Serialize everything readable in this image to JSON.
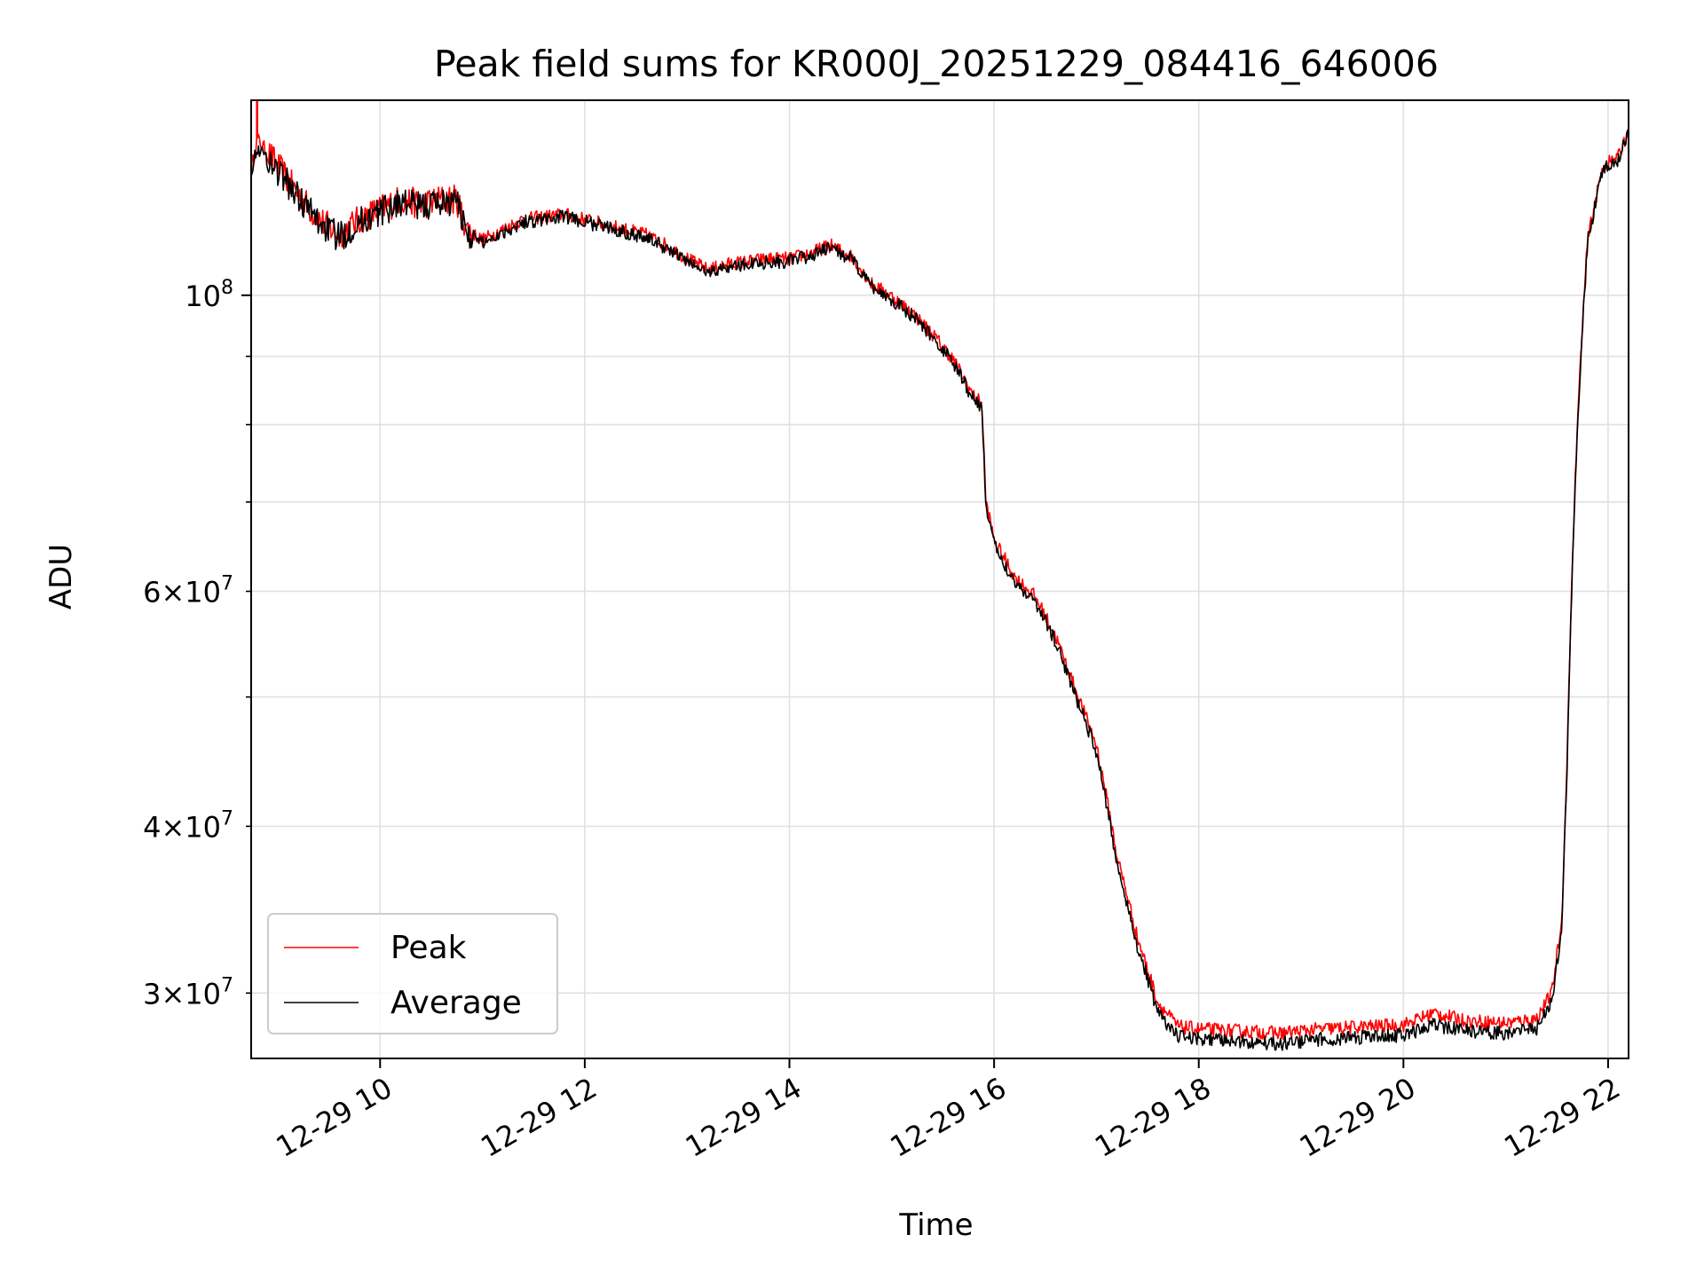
{
  "chart_data": {
    "type": "line",
    "title": "Peak field sums for KR000J_20251229_084416_646006",
    "xlabel": "Time",
    "ylabel": "ADU",
    "y_scale": "log",
    "x_unit": "hours on 2025-12-29",
    "xlim": [
      8.74,
      22.2
    ],
    "ylim": [
      26800000,
      140000000
    ],
    "grid": true,
    "legend_location": "lower-left",
    "colors": {
      "Peak": "#ff0000",
      "Average": "#000000",
      "grid": "#e0e0e0"
    },
    "x_ticks": [
      {
        "value": 10,
        "label": "12-29 10"
      },
      {
        "value": 12,
        "label": "12-29 12"
      },
      {
        "value": 14,
        "label": "12-29 14"
      },
      {
        "value": 16,
        "label": "12-29 16"
      },
      {
        "value": 18,
        "label": "12-29 18"
      },
      {
        "value": 20,
        "label": "12-29 20"
      },
      {
        "value": 22,
        "label": "12-29 22"
      }
    ],
    "y_major_ticks": [
      {
        "value": 100000000,
        "base": "10",
        "exp": "8"
      }
    ],
    "y_minor_ticks": [
      {
        "value": 30000000,
        "mant": "3",
        "base": "10",
        "exp": "7"
      },
      {
        "value": 40000000,
        "mant": "4",
        "base": "10",
        "exp": "7"
      },
      {
        "value": 50000000
      },
      {
        "value": 60000000,
        "mant": "6",
        "base": "10",
        "exp": "7"
      },
      {
        "value": 70000000
      },
      {
        "value": 80000000
      },
      {
        "value": 90000000
      }
    ],
    "series": [
      {
        "name": "Peak",
        "noise": 0.012,
        "spike": {
          "x": 8.8,
          "y": 140000000
        },
        "x": [
          8.74,
          8.8,
          9.0,
          9.2,
          9.4,
          9.6,
          9.8,
          10.0,
          10.2,
          10.4,
          10.6,
          10.75,
          10.85,
          11.0,
          11.2,
          11.4,
          11.6,
          11.8,
          12.0,
          12.2,
          12.4,
          12.6,
          12.8,
          13.0,
          13.2,
          13.4,
          13.6,
          13.8,
          14.0,
          14.2,
          14.4,
          14.6,
          14.8,
          15.0,
          15.2,
          15.4,
          15.6,
          15.8,
          15.88,
          15.92,
          16.0,
          16.2,
          16.4,
          16.6,
          16.8,
          17.0,
          17.2,
          17.4,
          17.6,
          17.8,
          18.0,
          18.4,
          18.8,
          19.2,
          19.6,
          20.0,
          20.3,
          20.6,
          21.0,
          21.3,
          21.45,
          21.55,
          21.6,
          21.7,
          21.8,
          21.95,
          22.1,
          22.2
        ],
        "y": [
          124000000,
          131000000,
          125000000,
          119000000,
          114000000,
          111000000,
          114000000,
          116000000,
          118000000,
          117000000,
          118000000,
          118000000,
          112000000,
          110000000,
          112000000,
          114000000,
          114500000,
          115000000,
          114000000,
          113000000,
          112000000,
          111000000,
          109000000,
          106500000,
          104500000,
          105500000,
          106000000,
          106500000,
          106500000,
          107500000,
          109000000,
          107000000,
          102000000,
          99800000,
          97000000,
          93500000,
          89500000,
          84000000,
          83000000,
          70000000,
          65500000,
          61500000,
          59500000,
          55500000,
          50500000,
          46000000,
          38000000,
          33000000,
          29500000,
          28300000,
          28200000,
          28100000,
          28000000,
          28200000,
          28300000,
          28400000,
          29000000,
          28600000,
          28500000,
          28700000,
          30000000,
          34000000,
          45000000,
          80000000,
          110000000,
          125000000,
          127000000,
          133000000
        ]
      },
      {
        "name": "Average",
        "noise": 0.012,
        "x": [
          8.74,
          8.8,
          9.0,
          9.2,
          9.4,
          9.6,
          9.8,
          10.0,
          10.2,
          10.4,
          10.6,
          10.75,
          10.85,
          11.0,
          11.2,
          11.4,
          11.6,
          11.8,
          12.0,
          12.2,
          12.4,
          12.6,
          12.8,
          13.0,
          13.2,
          13.4,
          13.6,
          13.8,
          14.0,
          14.2,
          14.4,
          14.6,
          14.8,
          15.0,
          15.2,
          15.4,
          15.6,
          15.8,
          15.88,
          15.92,
          16.0,
          16.2,
          16.4,
          16.6,
          16.8,
          17.0,
          17.2,
          17.4,
          17.6,
          17.8,
          18.0,
          18.4,
          18.8,
          19.2,
          19.6,
          20.0,
          20.3,
          20.6,
          21.0,
          21.3,
          21.45,
          21.55,
          21.6,
          21.7,
          21.8,
          21.95,
          22.1,
          22.2
        ],
        "y": [
          124000000,
          129000000,
          124000000,
          118500000,
          113500000,
          110500000,
          113500000,
          115500000,
          117500000,
          116500000,
          117500000,
          117500000,
          111500000,
          109500000,
          111500000,
          113500000,
          114000000,
          114500000,
          113500000,
          112500000,
          111500000,
          110500000,
          108500000,
          106000000,
          104000000,
          105000000,
          105500000,
          106000000,
          106000000,
          107000000,
          108500000,
          106500000,
          101500000,
          99300000,
          96500000,
          93000000,
          89000000,
          83500000,
          82500000,
          69500000,
          65000000,
          61000000,
          59000000,
          55000000,
          50000000,
          45500000,
          37500000,
          32500000,
          29000000,
          27800000,
          27700000,
          27600000,
          27500000,
          27700000,
          27800000,
          27900000,
          28400000,
          28100000,
          28000000,
          28200000,
          29600000,
          33500000,
          44500000,
          79500000,
          109500000,
          124500000,
          126500000,
          132500000
        ]
      }
    ]
  }
}
